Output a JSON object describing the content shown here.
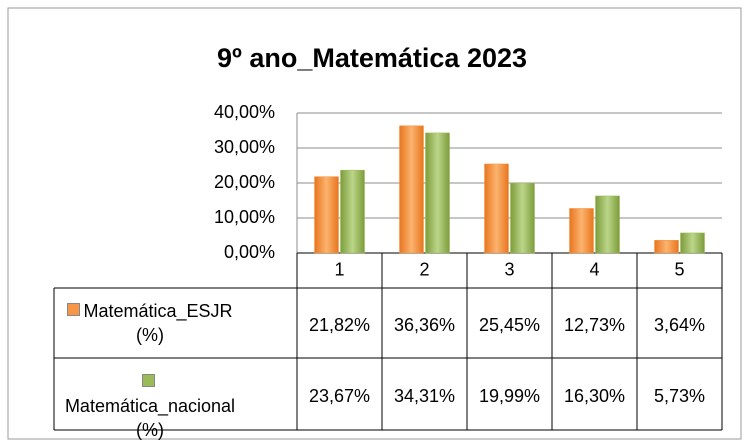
{
  "chart_data": {
    "type": "bar",
    "title": "9º ano_Matemática 2023",
    "categories": [
      "1",
      "2",
      "3",
      "4",
      "5"
    ],
    "series": [
      {
        "name": "Matemática_ESJR (%)",
        "color": "#f79646",
        "values": [
          21.82,
          36.36,
          25.45,
          12.73,
          3.64
        ],
        "value_labels": [
          "21,82%",
          "36,36%",
          "25,45%",
          "12,73%",
          "3,64%"
        ]
      },
      {
        "name": "Matemática_nacional (%)",
        "color": "#9bbb59",
        "values": [
          23.67,
          34.31,
          19.99,
          16.3,
          5.73
        ],
        "value_labels": [
          "23,67%",
          "34,31%",
          "19,99%",
          "16,30%",
          "5,73%"
        ]
      }
    ],
    "ylim": [
      0,
      40
    ],
    "yticks": [
      {
        "value": 0,
        "label": "0,00%"
      },
      {
        "value": 10,
        "label": "10,00%"
      },
      {
        "value": 20,
        "label": "20,00%"
      },
      {
        "value": 30,
        "label": "30,00%"
      },
      {
        "value": 40,
        "label": "40,00%"
      }
    ],
    "grid": true,
    "data_table": true
  }
}
